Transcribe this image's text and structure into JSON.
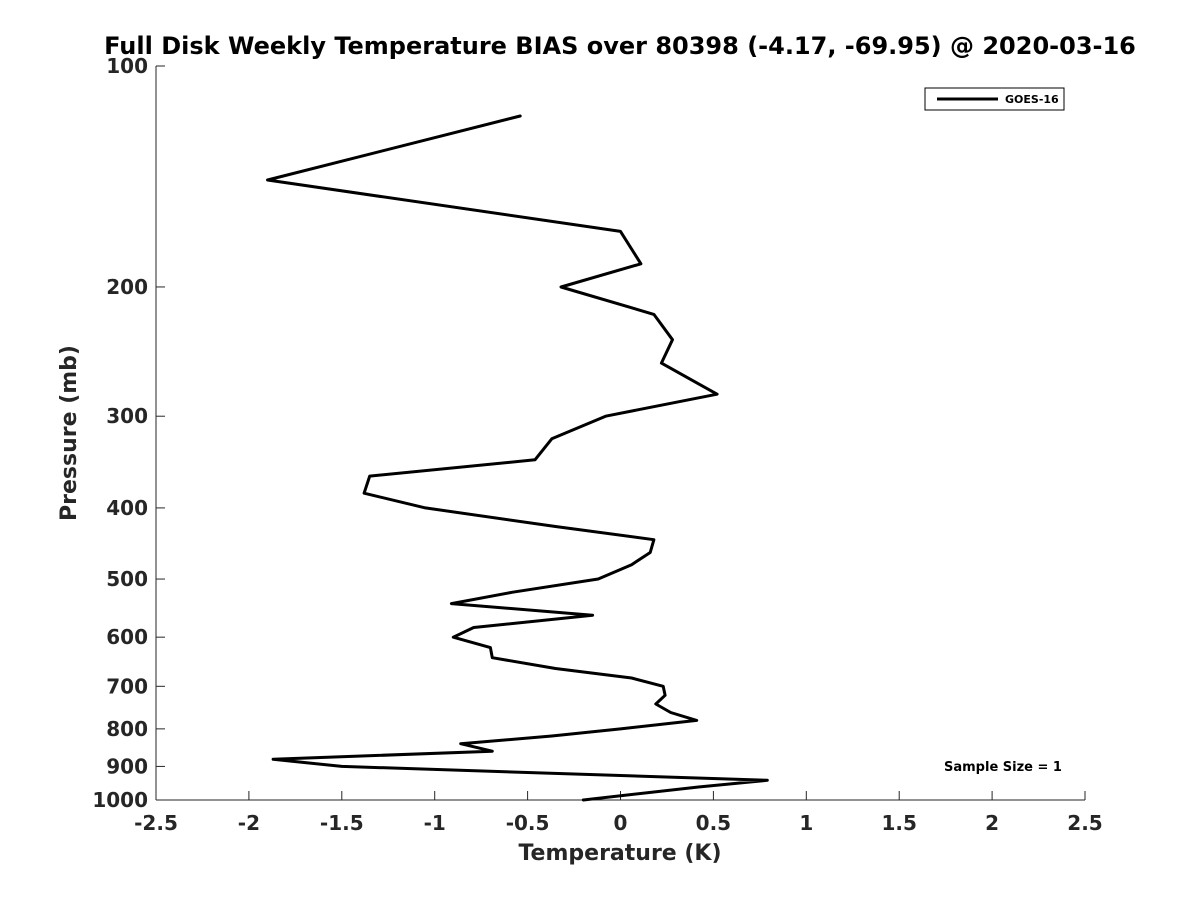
{
  "chart_data": {
    "type": "line",
    "title": "Full Disk Weekly Temperature BIAS over 80398 (-4.17, -69.95) @ 2020-03-16",
    "xlabel": "Temperature (K)",
    "ylabel": "Pressure (mb)",
    "xlim": [
      -2.5,
      2.5
    ],
    "ylim": [
      1000,
      100
    ],
    "yscale": "log",
    "xticks": [
      -2.5,
      -2,
      -1.5,
      -1,
      -0.5,
      0,
      0.5,
      1,
      1.5,
      2,
      2.5
    ],
    "xtick_labels": [
      "-2.5",
      "-2",
      "-1.5",
      "-1",
      "-0.5",
      "0",
      "0.5",
      "1",
      "1.5",
      "2",
      "2.5"
    ],
    "yticks": [
      100,
      200,
      300,
      400,
      500,
      600,
      700,
      800,
      900,
      1000
    ],
    "ytick_labels": [
      "100",
      "200",
      "300",
      "400",
      "500",
      "600",
      "700",
      "800",
      "900",
      "1000"
    ],
    "grid": false,
    "legend": {
      "position": "top-right",
      "entries": [
        "GOES-16"
      ]
    },
    "annotation": "Sample Size = 1",
    "series": [
      {
        "name": "GOES-16",
        "color": "#000000",
        "points": [
          [
            -0.54,
            117
          ],
          [
            -1.9,
            143
          ],
          [
            0.0,
            168
          ],
          [
            0.11,
            186
          ],
          [
            -0.32,
            200
          ],
          [
            0.18,
            218
          ],
          [
            0.28,
            236
          ],
          [
            0.22,
            254
          ],
          [
            0.52,
            280
          ],
          [
            -0.08,
            300
          ],
          [
            -0.37,
            322
          ],
          [
            -0.46,
            344
          ],
          [
            -1.35,
            362
          ],
          [
            -1.38,
            382
          ],
          [
            -1.05,
            400
          ],
          [
            -0.35,
            424
          ],
          [
            0.18,
            442
          ],
          [
            0.16,
            460
          ],
          [
            0.06,
            478
          ],
          [
            -0.12,
            500
          ],
          [
            -0.58,
            521
          ],
          [
            -0.91,
            540
          ],
          [
            -0.15,
            560
          ],
          [
            -0.79,
            582
          ],
          [
            -0.9,
            600
          ],
          [
            -0.7,
            620
          ],
          [
            -0.69,
            640
          ],
          [
            -0.35,
            662
          ],
          [
            0.06,
            682
          ],
          [
            0.23,
            700
          ],
          [
            0.24,
            720
          ],
          [
            0.19,
            740
          ],
          [
            0.27,
            760
          ],
          [
            0.41,
            779
          ],
          [
            0.0,
            800
          ],
          [
            -0.37,
            818
          ],
          [
            -0.86,
            838
          ],
          [
            -0.69,
            858
          ],
          [
            -1.87,
            880
          ],
          [
            -1.5,
            900
          ],
          [
            0.79,
            940
          ],
          [
            0.42,
            960
          ],
          [
            -0.2,
            1000
          ]
        ]
      }
    ]
  }
}
